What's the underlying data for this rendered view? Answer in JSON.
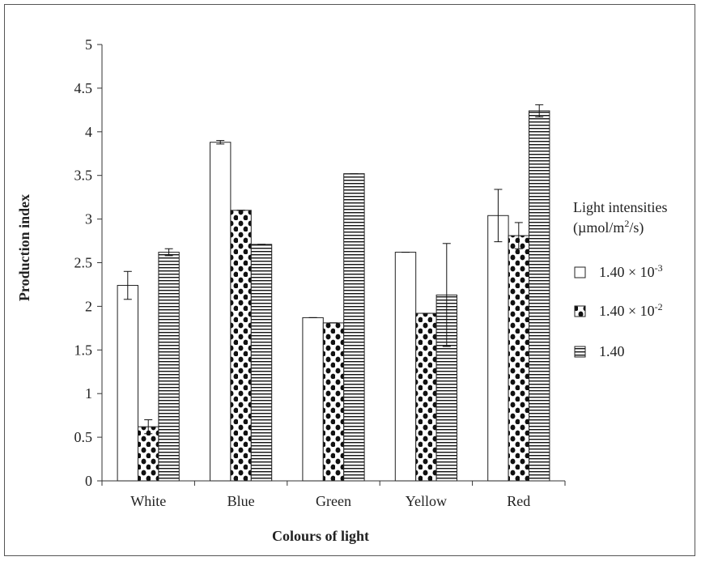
{
  "chart_data": {
    "type": "bar",
    "xlabel": "Colours of light",
    "ylabel": "Production index",
    "ylim": [
      0,
      5
    ],
    "yticks": [
      "0",
      "0.5",
      "1",
      "1.5",
      "2",
      "2.5",
      "3",
      "3.5",
      "4",
      "4.5",
      "5"
    ],
    "categories": [
      "White",
      "Blue",
      "Green",
      "Yellow",
      "Red"
    ],
    "legend": {
      "title_line1": "Light intensities",
      "title_line2_prefix": "(µmol/m",
      "title_line2_sup": "2",
      "title_line2_suffix": "/s)",
      "placement": "right"
    },
    "series": [
      {
        "name": "1.40 × 10-3",
        "label_base": "1.40 × 10",
        "label_sup": "-3",
        "pattern": "blank",
        "values": [
          2.24,
          3.88,
          1.87,
          2.62,
          3.04
        ],
        "errors": [
          0.16,
          0.02,
          0.0,
          0.0,
          0.3
        ]
      },
      {
        "name": "1.40 × 10-2",
        "label_base": "1.40 × 10",
        "label_sup": "-2",
        "pattern": "dots",
        "values": [
          0.62,
          3.1,
          1.81,
          1.92,
          2.81
        ],
        "errors": [
          0.08,
          0.0,
          0.0,
          0.0,
          0.15
        ]
      },
      {
        "name": "1.40",
        "label_base": "1.40",
        "label_sup": "",
        "pattern": "lines",
        "values": [
          2.62,
          2.71,
          3.52,
          2.13,
          4.24
        ],
        "errors": [
          0.04,
          0.0,
          0.0,
          0.59,
          0.07
        ]
      }
    ]
  }
}
